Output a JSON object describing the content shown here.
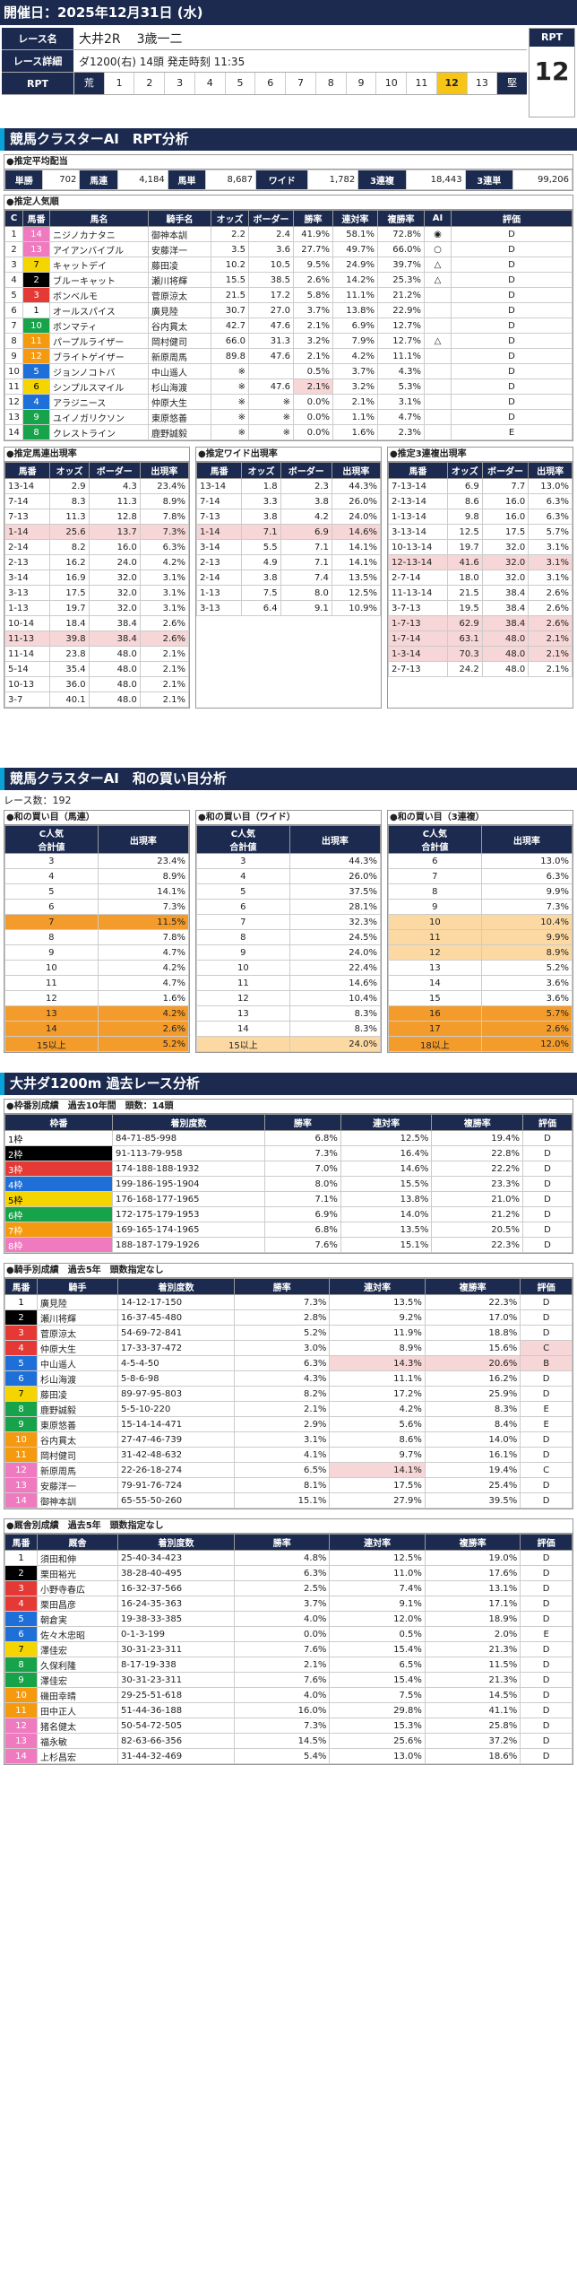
{
  "header": {
    "date": "開催日：2025年12月31日 (水)"
  },
  "race": {
    "name_label": "レース名",
    "name": "大井2R",
    "name2": "3歳一二",
    "detail_label": "レース詳細",
    "detail": "ダ1200(右)  14頭  発走時刻 11:35",
    "rpt_label": "RPT",
    "rpt_cells": [
      "荒",
      "1",
      "2",
      "3",
      "4",
      "5",
      "6",
      "7",
      "8",
      "9",
      "10",
      "11",
      "12",
      "13",
      "堅"
    ],
    "rpt_selected": "12",
    "rpt_box_label": "RPT",
    "rpt_value": "12"
  },
  "sec1": {
    "title": "競馬クラスターAI　RPT分析"
  },
  "payout": {
    "title": "●推定平均配当",
    "items": [
      [
        "単勝",
        "702"
      ],
      [
        "馬連",
        "4,184"
      ],
      [
        "馬単",
        "8,687"
      ],
      [
        "ワイド",
        "1,782"
      ],
      [
        "3連複",
        "18,443"
      ],
      [
        "3連単",
        "99,206"
      ]
    ]
  },
  "pop": {
    "title": "●推定人気順",
    "headers": [
      "C",
      "馬番",
      "馬名",
      "騎手名",
      "オッズ",
      "ボーダー",
      "勝率",
      "連対率",
      "複勝率",
      "AI",
      "評価"
    ],
    "rows": [
      [
        "1",
        "14",
        "ニジノカナタニ",
        "御神本訓",
        "2.2",
        "2.4",
        "41.9%",
        "58.1%",
        "72.8%",
        "◉",
        "D",
        "8"
      ],
      [
        "2",
        "13",
        "アイアンバイブル",
        "安藤洋一",
        "3.5",
        "3.6",
        "27.7%",
        "49.7%",
        "66.0%",
        "○",
        "D",
        "8"
      ],
      [
        "3",
        "7",
        "キャットデイ",
        "藤田凌",
        "10.2",
        "10.5",
        "9.5%",
        "24.9%",
        "39.7%",
        "△",
        "D",
        "5"
      ],
      [
        "4",
        "2",
        "ブルーキャット",
        "瀬川将輝",
        "15.5",
        "38.5",
        "2.6%",
        "14.2%",
        "25.3%",
        "△",
        "D",
        "2"
      ],
      [
        "5",
        "3",
        "ボンベルモ",
        "菅原涼太",
        "21.5",
        "17.2",
        "5.8%",
        "11.1%",
        "21.2%",
        "",
        "D",
        "3"
      ],
      [
        "6",
        "1",
        "オールスパイス",
        "廣見陸",
        "30.7",
        "27.0",
        "3.7%",
        "13.8%",
        "22.9%",
        "",
        "D",
        "1"
      ],
      [
        "7",
        "10",
        "ボンマティ",
        "谷内貫太",
        "42.7",
        "47.6",
        "2.1%",
        "6.9%",
        "12.7%",
        "",
        "D",
        "6"
      ],
      [
        "8",
        "11",
        "パープルライザー",
        "岡村健司",
        "66.0",
        "31.3",
        "3.2%",
        "7.9%",
        "12.7%",
        "△",
        "D",
        "7"
      ],
      [
        "9",
        "12",
        "ブライトゲイザー",
        "新原周馬",
        "89.8",
        "47.6",
        "2.1%",
        "4.2%",
        "11.1%",
        "",
        "D",
        "7"
      ],
      [
        "10",
        "5",
        "ジョンノコトバ",
        "中山遥人",
        "※",
        "",
        "0.5%",
        "3.7%",
        "4.3%",
        "",
        "D",
        "4"
      ],
      [
        "11",
        "6",
        "シンプルスマイル",
        "杉山海渡",
        "※",
        "47.6",
        "2.1%",
        "3.2%",
        "5.3%",
        "",
        "D",
        "5"
      ],
      [
        "12",
        "4",
        "アラジニース",
        "仲原大生",
        "※",
        "※",
        "0.0%",
        "2.1%",
        "3.1%",
        "",
        "D",
        "4"
      ],
      [
        "13",
        "9",
        "ユイノガリクソン",
        "東原悠善",
        "※",
        "※",
        "0.0%",
        "1.1%",
        "4.7%",
        "",
        "D",
        "6"
      ],
      [
        "14",
        "8",
        "クレストライン",
        "鹿野誠毅",
        "※",
        "※",
        "0.0%",
        "1.6%",
        "2.3%",
        "",
        "E",
        "6"
      ]
    ]
  },
  "t1": {
    "title": "●推定馬連出現率",
    "headers": [
      "馬番",
      "オッズ",
      "ボーダー",
      "出現率"
    ],
    "rows": [
      [
        "13-14",
        "2.9",
        "4.3",
        "23.4%",
        ""
      ],
      [
        "7-14",
        "8.3",
        "11.3",
        "8.9%",
        ""
      ],
      [
        "7-13",
        "11.3",
        "12.8",
        "7.8%",
        ""
      ],
      [
        "1-14",
        "25.6",
        "13.7",
        "7.3%",
        "p"
      ],
      [
        "2-14",
        "8.2",
        "16.0",
        "6.3%",
        ""
      ],
      [
        "2-13",
        "16.2",
        "24.0",
        "4.2%",
        ""
      ],
      [
        "3-14",
        "16.9",
        "32.0",
        "3.1%",
        ""
      ],
      [
        "3-13",
        "17.5",
        "32.0",
        "3.1%",
        ""
      ],
      [
        "1-13",
        "19.7",
        "32.0",
        "3.1%",
        ""
      ],
      [
        "10-14",
        "18.4",
        "38.4",
        "2.6%",
        ""
      ],
      [
        "11-13",
        "39.8",
        "38.4",
        "2.6%",
        "p"
      ],
      [
        "11-14",
        "23.8",
        "48.0",
        "2.1%",
        ""
      ],
      [
        "5-14",
        "35.4",
        "48.0",
        "2.1%",
        ""
      ],
      [
        "10-13",
        "36.0",
        "48.0",
        "2.1%",
        ""
      ],
      [
        "3-7",
        "40.1",
        "48.0",
        "2.1%",
        ""
      ]
    ]
  },
  "t2": {
    "title": "●推定ワイド出現率",
    "headers": [
      "馬番",
      "オッズ",
      "ボーダー",
      "出現率"
    ],
    "rows": [
      [
        "13-14",
        "1.8",
        "2.3",
        "44.3%",
        ""
      ],
      [
        "7-14",
        "3.3",
        "3.8",
        "26.0%",
        ""
      ],
      [
        "7-13",
        "3.8",
        "4.2",
        "24.0%",
        ""
      ],
      [
        "1-14",
        "7.1",
        "6.9",
        "14.6%",
        "p"
      ],
      [
        "3-14",
        "5.5",
        "7.1",
        "14.1%",
        ""
      ],
      [
        "2-13",
        "4.9",
        "7.1",
        "14.1%",
        ""
      ],
      [
        "2-14",
        "3.8",
        "7.4",
        "13.5%",
        ""
      ],
      [
        "1-13",
        "7.5",
        "8.0",
        "12.5%",
        ""
      ],
      [
        "3-13",
        "6.4",
        "9.1",
        "10.9%",
        ""
      ]
    ]
  },
  "t3": {
    "title": "●推定3連複出現率",
    "headers": [
      "馬番",
      "オッズ",
      "ボーダー",
      "出現率"
    ],
    "rows": [
      [
        "7-13-14",
        "6.9",
        "7.7",
        "13.0%",
        ""
      ],
      [
        "2-13-14",
        "8.6",
        "16.0",
        "6.3%",
        ""
      ],
      [
        "1-13-14",
        "9.8",
        "16.0",
        "6.3%",
        ""
      ],
      [
        "3-13-14",
        "12.5",
        "17.5",
        "5.7%",
        ""
      ],
      [
        "10-13-14",
        "19.7",
        "32.0",
        "3.1%",
        ""
      ],
      [
        "12-13-14",
        "41.6",
        "32.0",
        "3.1%",
        "p"
      ],
      [
        "2-7-14",
        "18.0",
        "32.0",
        "3.1%",
        ""
      ],
      [
        "11-13-14",
        "21.5",
        "38.4",
        "2.6%",
        ""
      ],
      [
        "3-7-13",
        "19.5",
        "38.4",
        "2.6%",
        ""
      ],
      [
        "1-7-13",
        "62.9",
        "38.4",
        "2.6%",
        "p"
      ],
      [
        "1-7-14",
        "63.1",
        "48.0",
        "2.1%",
        "p"
      ],
      [
        "1-3-14",
        "70.3",
        "48.0",
        "2.1%",
        "p"
      ],
      [
        "2-7-13",
        "24.2",
        "48.0",
        "2.1%",
        ""
      ]
    ]
  },
  "sec2": {
    "title": "競馬クラスターAI　和の買い目分析",
    "races": "レース数：192"
  },
  "w1": {
    "title": "●和の買い目（馬連）",
    "headers": [
      "C人気\n合計値",
      "出現率"
    ],
    "rows": [
      [
        "3",
        "23.4%",
        ""
      ],
      [
        "4",
        "8.9%",
        ""
      ],
      [
        "5",
        "14.1%",
        ""
      ],
      [
        "6",
        "7.3%",
        ""
      ],
      [
        "7",
        "11.5%",
        "o"
      ],
      [
        "8",
        "7.8%",
        ""
      ],
      [
        "9",
        "4.7%",
        ""
      ],
      [
        "10",
        "4.2%",
        ""
      ],
      [
        "11",
        "4.7%",
        ""
      ],
      [
        "12",
        "1.6%",
        ""
      ],
      [
        "13",
        "4.2%",
        "o"
      ],
      [
        "14",
        "2.6%",
        "o"
      ],
      [
        "15以上",
        "5.2%",
        "o"
      ]
    ]
  },
  "w2": {
    "title": "●和の買い目（ワイド）",
    "headers": [
      "C人気\n合計値",
      "出現率"
    ],
    "rows": [
      [
        "3",
        "44.3%",
        ""
      ],
      [
        "4",
        "26.0%",
        ""
      ],
      [
        "5",
        "37.5%",
        ""
      ],
      [
        "6",
        "28.1%",
        ""
      ],
      [
        "7",
        "32.3%",
        ""
      ],
      [
        "8",
        "24.5%",
        ""
      ],
      [
        "9",
        "24.0%",
        ""
      ],
      [
        "10",
        "22.4%",
        ""
      ],
      [
        "11",
        "14.6%",
        ""
      ],
      [
        "12",
        "10.4%",
        ""
      ],
      [
        "13",
        "8.3%",
        ""
      ],
      [
        "14",
        "8.3%",
        ""
      ],
      [
        "15以上",
        "24.0%",
        "l"
      ]
    ]
  },
  "w3": {
    "title": "●和の買い目（3連複）",
    "headers": [
      "C人気\n合計値",
      "出現率"
    ],
    "rows": [
      [
        "6",
        "13.0%",
        ""
      ],
      [
        "7",
        "6.3%",
        ""
      ],
      [
        "8",
        "9.9%",
        ""
      ],
      [
        "9",
        "7.3%",
        ""
      ],
      [
        "10",
        "10.4%",
        "l"
      ],
      [
        "11",
        "9.9%",
        "l"
      ],
      [
        "12",
        "8.9%",
        "l"
      ],
      [
        "13",
        "5.2%",
        ""
      ],
      [
        "14",
        "3.6%",
        ""
      ],
      [
        "15",
        "3.6%",
        ""
      ],
      [
        "16",
        "5.7%",
        "o"
      ],
      [
        "17",
        "2.6%",
        "o"
      ],
      [
        "18以上",
        "12.0%",
        "o"
      ]
    ]
  },
  "sec3": {
    "title": "大井ダ1200m 過去レース分析"
  },
  "frame": {
    "title": "●枠番別成績　過去10年間　頭数：14頭",
    "headers": [
      "枠番",
      "着別度数",
      "勝率",
      "連対率",
      "複勝率",
      "評価"
    ],
    "rows": [
      [
        "1枠",
        "84-71-85-998",
        "6.8%",
        "12.5%",
        "19.4%",
        "D",
        "1"
      ],
      [
        "2枠",
        "91-113-79-958",
        "7.3%",
        "16.4%",
        "22.8%",
        "D",
        "2"
      ],
      [
        "3枠",
        "174-188-188-1932",
        "7.0%",
        "14.6%",
        "22.2%",
        "D",
        "3"
      ],
      [
        "4枠",
        "199-186-195-1904",
        "8.0%",
        "15.5%",
        "23.3%",
        "D",
        "4"
      ],
      [
        "5枠",
        "176-168-177-1965",
        "7.1%",
        "13.8%",
        "21.0%",
        "D",
        "5"
      ],
      [
        "6枠",
        "172-175-179-1953",
        "6.9%",
        "14.0%",
        "21.2%",
        "D",
        "6"
      ],
      [
        "7枠",
        "169-165-174-1965",
        "6.8%",
        "13.5%",
        "20.5%",
        "D",
        "7"
      ],
      [
        "8枠",
        "188-187-179-1926",
        "7.6%",
        "15.1%",
        "22.3%",
        "D",
        "8"
      ]
    ]
  },
  "jockey": {
    "title": "●騎手別成績　過去5年　頭数指定なし",
    "headers": [
      "馬番",
      "騎手",
      "着別度数",
      "勝率",
      "連対率",
      "複勝率",
      "評価"
    ],
    "rows": [
      [
        "1",
        "廣見陸",
        "14-12-17-150",
        "7.3%",
        "13.5%",
        "22.3%",
        "D",
        "1",
        ""
      ],
      [
        "2",
        "瀬川将輝",
        "16-37-45-480",
        "2.8%",
        "9.2%",
        "17.0%",
        "D",
        "2",
        ""
      ],
      [
        "3",
        "菅原涼太",
        "54-69-72-841",
        "5.2%",
        "11.9%",
        "18.8%",
        "D",
        "3",
        ""
      ],
      [
        "4",
        "仲原大生",
        "17-33-37-472",
        "3.0%",
        "8.9%",
        "15.6%",
        "C",
        "3",
        "c6"
      ],
      [
        "5",
        "中山遥人",
        "4-5-4-50",
        "6.3%",
        "14.3%",
        "20.6%",
        "B",
        "4",
        "c4c5c6"
      ],
      [
        "6",
        "杉山海渡",
        "5-8-6-98",
        "4.3%",
        "11.1%",
        "16.2%",
        "D",
        "4",
        ""
      ],
      [
        "7",
        "藤田凌",
        "89-97-95-803",
        "8.2%",
        "17.2%",
        "25.9%",
        "D",
        "5",
        ""
      ],
      [
        "8",
        "鹿野誠毅",
        "5-5-10-220",
        "2.1%",
        "4.2%",
        "8.3%",
        "E",
        "6",
        ""
      ],
      [
        "9",
        "東原悠善",
        "15-14-14-471",
        "2.9%",
        "5.6%",
        "8.4%",
        "E",
        "6",
        ""
      ],
      [
        "10",
        "谷内貫太",
        "27-47-46-739",
        "3.1%",
        "8.6%",
        "14.0%",
        "D",
        "7",
        ""
      ],
      [
        "11",
        "岡村健司",
        "31-42-48-632",
        "4.1%",
        "9.7%",
        "16.1%",
        "D",
        "7",
        ""
      ],
      [
        "12",
        "新原周馬",
        "22-26-18-274",
        "6.5%",
        "14.1%",
        "19.4%",
        "C",
        "8",
        "c4"
      ],
      [
        "13",
        "安藤洋一",
        "79-91-76-724",
        "8.1%",
        "17.5%",
        "25.4%",
        "D",
        "8",
        ""
      ],
      [
        "14",
        "御神本訓",
        "65-55-50-260",
        "15.1%",
        "27.9%",
        "39.5%",
        "D",
        "8",
        ""
      ]
    ]
  },
  "trainer": {
    "title": "●厩舎別成績　過去5年　頭数指定なし",
    "headers": [
      "馬番",
      "厩舎",
      "着別度数",
      "勝率",
      "連対率",
      "複勝率",
      "評価"
    ],
    "rows": [
      [
        "1",
        "須田和伸",
        "25-40-34-423",
        "4.8%",
        "12.5%",
        "19.0%",
        "D",
        "1"
      ],
      [
        "2",
        "栗田裕光",
        "38-28-40-495",
        "6.3%",
        "11.0%",
        "17.6%",
        "D",
        "2"
      ],
      [
        "3",
        "小野寺春広",
        "16-32-37-566",
        "2.5%",
        "7.4%",
        "13.1%",
        "D",
        "3"
      ],
      [
        "4",
        "栗田昌彦",
        "16-24-35-363",
        "3.7%",
        "9.1%",
        "17.1%",
        "D",
        "3"
      ],
      [
        "5",
        "朝倉実",
        "19-38-33-385",
        "4.0%",
        "12.0%",
        "18.9%",
        "D",
        "4"
      ],
      [
        "6",
        "佐々木忠昭",
        "0-1-3-199",
        "0.0%",
        "0.5%",
        "2.0%",
        "E",
        "4"
      ],
      [
        "7",
        "澤佳宏",
        "30-31-23-311",
        "7.6%",
        "15.4%",
        "21.3%",
        "D",
        "5"
      ],
      [
        "8",
        "久保利隆",
        "8-17-19-338",
        "2.1%",
        "6.5%",
        "11.5%",
        "D",
        "6"
      ],
      [
        "9",
        "澤佳宏",
        "30-31-23-311",
        "7.6%",
        "15.4%",
        "21.3%",
        "D",
        "6"
      ],
      [
        "10",
        "磯田幸晴",
        "29-25-51-618",
        "4.0%",
        "7.5%",
        "14.5%",
        "D",
        "7"
      ],
      [
        "11",
        "田中正人",
        "51-44-36-188",
        "16.0%",
        "29.8%",
        "41.1%",
        "D",
        "7"
      ],
      [
        "12",
        "猪名健太",
        "50-54-72-505",
        "7.3%",
        "15.3%",
        "25.8%",
        "D",
        "8"
      ],
      [
        "13",
        "福永敏",
        "82-63-66-356",
        "14.5%",
        "25.6%",
        "37.2%",
        "D",
        "8"
      ],
      [
        "14",
        "上杉昌宏",
        "31-44-32-469",
        "5.4%",
        "13.0%",
        "18.6%",
        "D",
        "8"
      ]
    ]
  }
}
